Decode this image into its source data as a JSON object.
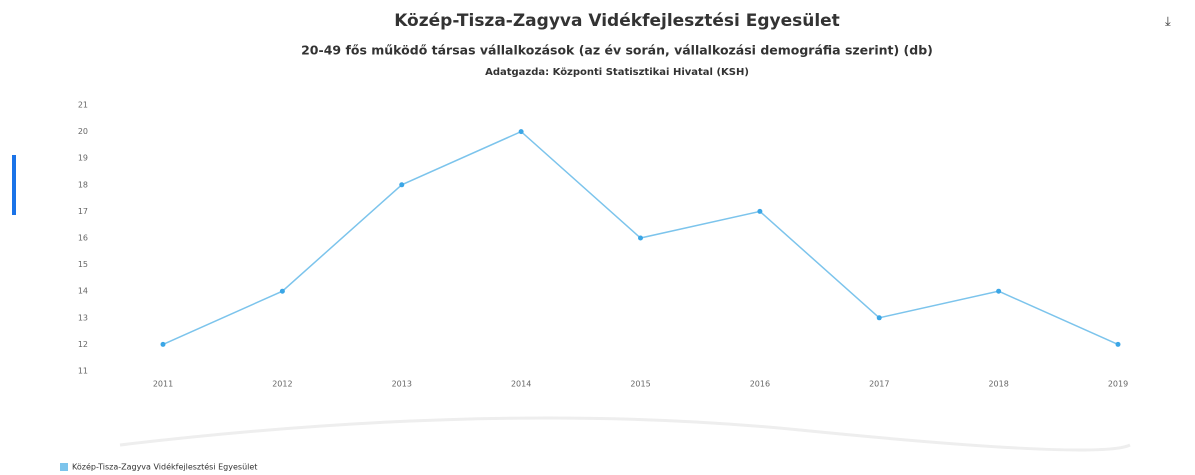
{
  "chart_data": {
    "type": "line",
    "title": "Közép-Tisza-Zagyva Vidékfejlesztési Egyesület",
    "subtitle": "20-49 fős működő társas vállalkozások (az év során, vállalkozási demográfia szerint) (db)",
    "source": "Adatgazda: Központi Statisztikai Hivatal (KSH)",
    "categories": [
      "2011",
      "2012",
      "2013",
      "2014",
      "2015",
      "2016",
      "2017",
      "2018",
      "2019"
    ],
    "series": [
      {
        "name": "Közép-Tisza-Zagyva Vidékfejlesztési Egyesület",
        "color": "#7cc4ec",
        "values": [
          12,
          14,
          18,
          20,
          16,
          17,
          13,
          14,
          12
        ]
      }
    ],
    "ylim": [
      11,
      21
    ],
    "yticks": [
      11,
      12,
      13,
      14,
      15,
      16,
      17,
      18,
      19,
      20,
      21
    ],
    "grid": false,
    "legend": "bottom-left"
  }
}
